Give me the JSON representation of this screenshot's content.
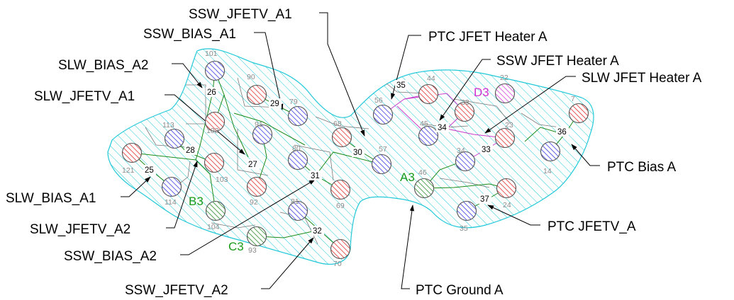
{
  "colors": {
    "outline": "#22c8d8",
    "red_pad": "#e03030",
    "blue_pad": "#3c3ce0",
    "green_pad": "#2a8a2a",
    "magenta_pad": "#d840d8",
    "trace_green": "#1a8a1a",
    "trace_magenta": "#c83cc8",
    "label_green": "#1a9a1a",
    "label_magenta": "#d030d0"
  },
  "callouts": [
    {
      "id": "ssw-jfetv-a1",
      "text": "SSW_JFETV_A1"
    },
    {
      "id": "ssw-bias-a1",
      "text": "SSW_BIAS_A1"
    },
    {
      "id": "slw-bias-a2",
      "text": "SLW_BIAS_A2"
    },
    {
      "id": "slw-jfetv-a1",
      "text": "SLW_JFETV_A1"
    },
    {
      "id": "slw-bias-a1",
      "text": "SLW_BIAS_A1"
    },
    {
      "id": "slw-jfetv-a2",
      "text": "SLW_JFETV_A2"
    },
    {
      "id": "ssw-bias-a2",
      "text": "SSW_BIAS_A2"
    },
    {
      "id": "ssw-jfetv-a2",
      "text": "SSW_JFETV_A2"
    },
    {
      "id": "ptc-jfet-heater-a",
      "text": "PTC JFET Heater A"
    },
    {
      "id": "ssw-jfet-heater-a",
      "text": "SSW JFET Heater A"
    },
    {
      "id": "slw-jfet-heater-a",
      "text": "SLW JFET Heater A"
    },
    {
      "id": "ptc-bias-a",
      "text": "PTC Bias A"
    },
    {
      "id": "ptc-jfetv-a",
      "text": "PTC JFETV_A"
    },
    {
      "id": "ptc-ground-a",
      "text": "PTC Ground A"
    }
  ],
  "pins": [
    {
      "n": "101",
      "c": "blue"
    },
    {
      "n": "102",
      "c": "red"
    },
    {
      "n": "90",
      "c": "red"
    },
    {
      "n": "79",
      "c": "blue"
    },
    {
      "n": "113",
      "c": "blue"
    },
    {
      "n": "103",
      "c": "red"
    },
    {
      "n": "121",
      "c": "red"
    },
    {
      "n": "114",
      "c": "blue"
    },
    {
      "n": "91",
      "c": "blue"
    },
    {
      "n": "92",
      "c": "red"
    },
    {
      "n": "104",
      "c": "green"
    },
    {
      "n": "80",
      "c": "blue"
    },
    {
      "n": "69",
      "c": "red"
    },
    {
      "n": "68",
      "c": "red"
    },
    {
      "n": "57",
      "c": "blue"
    },
    {
      "n": "81",
      "c": "blue"
    },
    {
      "n": "70",
      "c": "red"
    },
    {
      "n": "93",
      "c": "green"
    },
    {
      "n": "56",
      "c": "blue"
    },
    {
      "n": "44",
      "c": "red"
    },
    {
      "n": "45",
      "c": "blue"
    },
    {
      "n": "33",
      "c": "red"
    },
    {
      "n": "22",
      "c": "magenta"
    },
    {
      "n": "34",
      "c": "blue"
    },
    {
      "n": "23",
      "c": "red"
    },
    {
      "n": "7",
      "c": "red"
    },
    {
      "n": "14",
      "c": "blue"
    },
    {
      "n": "46",
      "c": "green"
    },
    {
      "n": "35",
      "c": "blue"
    },
    {
      "n": "24",
      "c": "red"
    }
  ],
  "groups": [
    "25",
    "26",
    "27",
    "28",
    "29",
    "30",
    "31",
    "32",
    "33",
    "34",
    "35",
    "36",
    "37"
  ],
  "connectors": [
    {
      "id": "b3",
      "text": "B3"
    },
    {
      "id": "c3",
      "text": "C3"
    },
    {
      "id": "a3",
      "text": "A3"
    },
    {
      "id": "d3",
      "text": "D3"
    }
  ]
}
